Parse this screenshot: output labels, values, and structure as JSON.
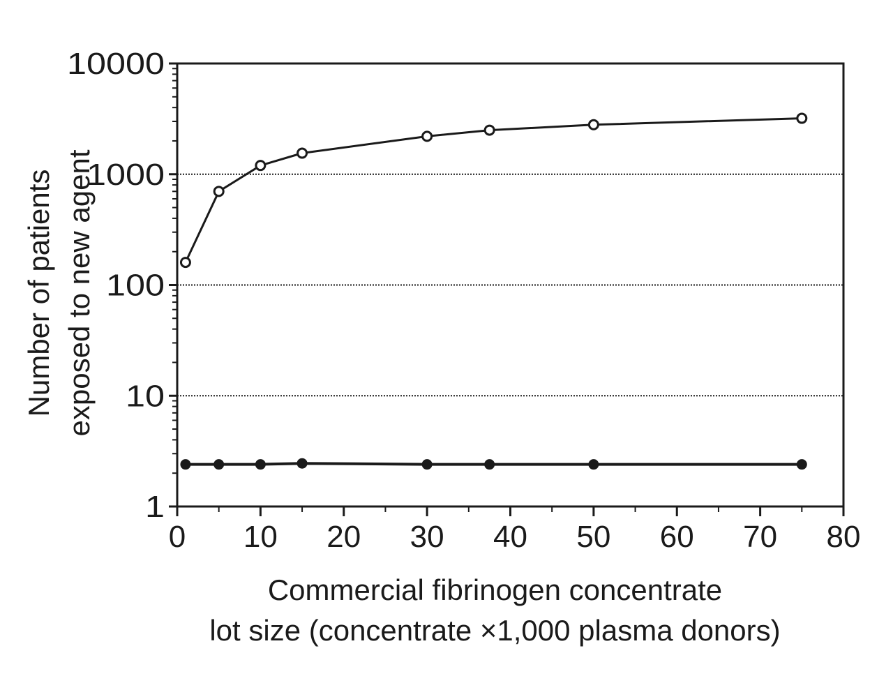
{
  "chart_data": {
    "type": "line",
    "title": "",
    "xlabel_lines": [
      "Commercial fibrinogen concentrate",
      "lot size (concentrate ×1,000 plasma donors)"
    ],
    "ylabel_lines": [
      "Number of patients",
      "exposed to new agent"
    ],
    "xlim": [
      0,
      80
    ],
    "ylim": [
      1,
      10000
    ],
    "y_scale": "log",
    "x_ticks": [
      0,
      10,
      20,
      30,
      40,
      50,
      60,
      70,
      80
    ],
    "x_tick_labels": [
      "0",
      "10",
      "20",
      "30",
      "40",
      "50",
      "60",
      "70",
      "80"
    ],
    "y_ticks": [
      1,
      10,
      100,
      1000,
      10000
    ],
    "y_tick_labels": [
      "1",
      "10",
      "100",
      "1000",
      "10000"
    ],
    "grid": "horizontal dotted lines at 10, 100, 1000",
    "legend": "none",
    "series": [
      {
        "marker": "open-circle",
        "x": [
          1,
          5,
          10,
          15,
          30,
          37.5,
          50,
          75
        ],
        "y": [
          160,
          700,
          1200,
          1550,
          2200,
          2500,
          2800,
          3200
        ],
        "color": "#1a1a1a"
      },
      {
        "marker": "filled-circle",
        "x": [
          1,
          5,
          10,
          15,
          30,
          37.5,
          50,
          75
        ],
        "y": [
          2.4,
          2.4,
          2.4,
          2.45,
          2.4,
          2.4,
          2.4,
          2.4
        ],
        "color": "#1a1a1a"
      }
    ]
  }
}
